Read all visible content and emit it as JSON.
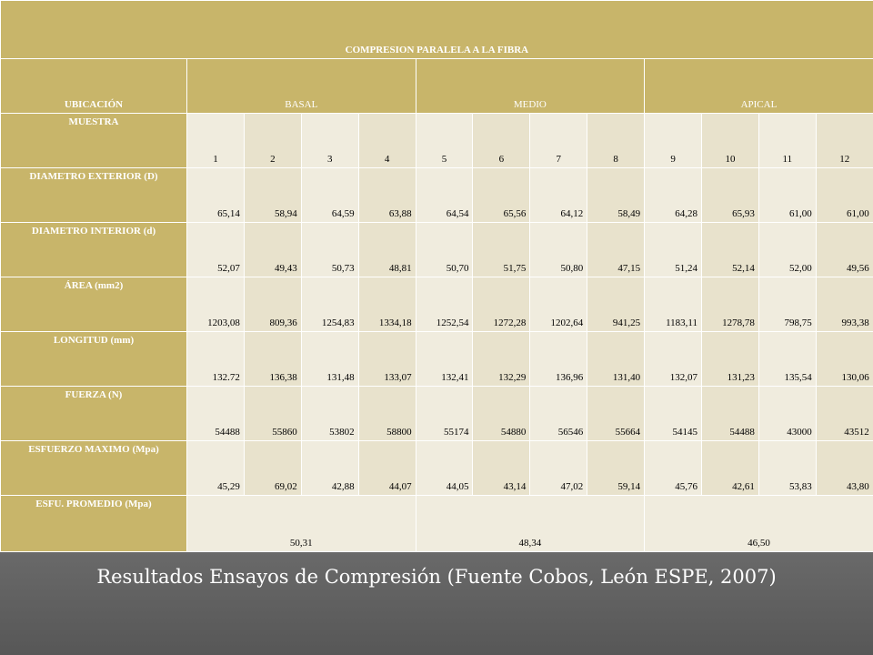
{
  "title": "COMPRESION PARALELA A LA FIBRA",
  "header": {
    "ubicacion_label": "UBICACIÓN",
    "groups": [
      "BASAL",
      "MEDIO",
      "APICAL"
    ]
  },
  "rows": {
    "muestra": {
      "label": "MUESTRA",
      "values": [
        "1",
        "2",
        "3",
        "4",
        "5",
        "6",
        "7",
        "8",
        "9",
        "10",
        "11",
        "12"
      ]
    },
    "diametro_ext": {
      "label": "DIAMETRO EXTERIOR (D)",
      "values": [
        "65,14",
        "58,94",
        "64,59",
        "63,88",
        "64,54",
        "65,56",
        "64,12",
        "58,49",
        "64,28",
        "65,93",
        "61,00",
        "61,00"
      ]
    },
    "diametro_int": {
      "label": "DIAMETRO INTERIOR (d)",
      "values": [
        "52,07",
        "49,43",
        "50,73",
        "48,81",
        "50,70",
        "51,75",
        "50,80",
        "47,15",
        "51,24",
        "52,14",
        "52,00",
        "49,56"
      ]
    },
    "area": {
      "label": "ÁREA (mm2)",
      "values": [
        "1203,08",
        "809,36",
        "1254,83",
        "1334,18",
        "1252,54",
        "1272,28",
        "1202,64",
        "941,25",
        "1183,11",
        "1278,78",
        "798,75",
        "993,38"
      ]
    },
    "longitud": {
      "label": "LONGITUD (mm)",
      "values": [
        "132.72",
        "136,38",
        "131,48",
        "133,07",
        "132,41",
        "132,29",
        "136,96",
        "131,40",
        "132,07",
        "131,23",
        "135,54",
        "130,06"
      ]
    },
    "fuerza": {
      "label": "FUERZA (N)",
      "values": [
        "54488",
        "55860",
        "53802",
        "58800",
        "55174",
        "54880",
        "56546",
        "55664",
        "54145",
        "54488",
        "43000",
        "43512"
      ]
    },
    "esfuerzo": {
      "label": "ESFUERZO MAXIMO (Mpa)",
      "values": [
        "45,29",
        "69,02",
        "42,88",
        "44,07",
        "44,05",
        "43,14",
        "47,02",
        "59,14",
        "45,76",
        "42,61",
        "53,83",
        "43,80"
      ]
    },
    "promedio": {
      "label": "ESFU. PROMEDIO (Mpa)",
      "values": [
        "50,31",
        "48,34",
        "46,50"
      ]
    }
  },
  "caption": "Resultados Ensayos de Compresión (Fuente Cobos, León ESPE, 2007)",
  "colors": {
    "header_gold": "#c8b56a",
    "cell_cream": "#f0ecde",
    "band_gray": "#575757"
  }
}
